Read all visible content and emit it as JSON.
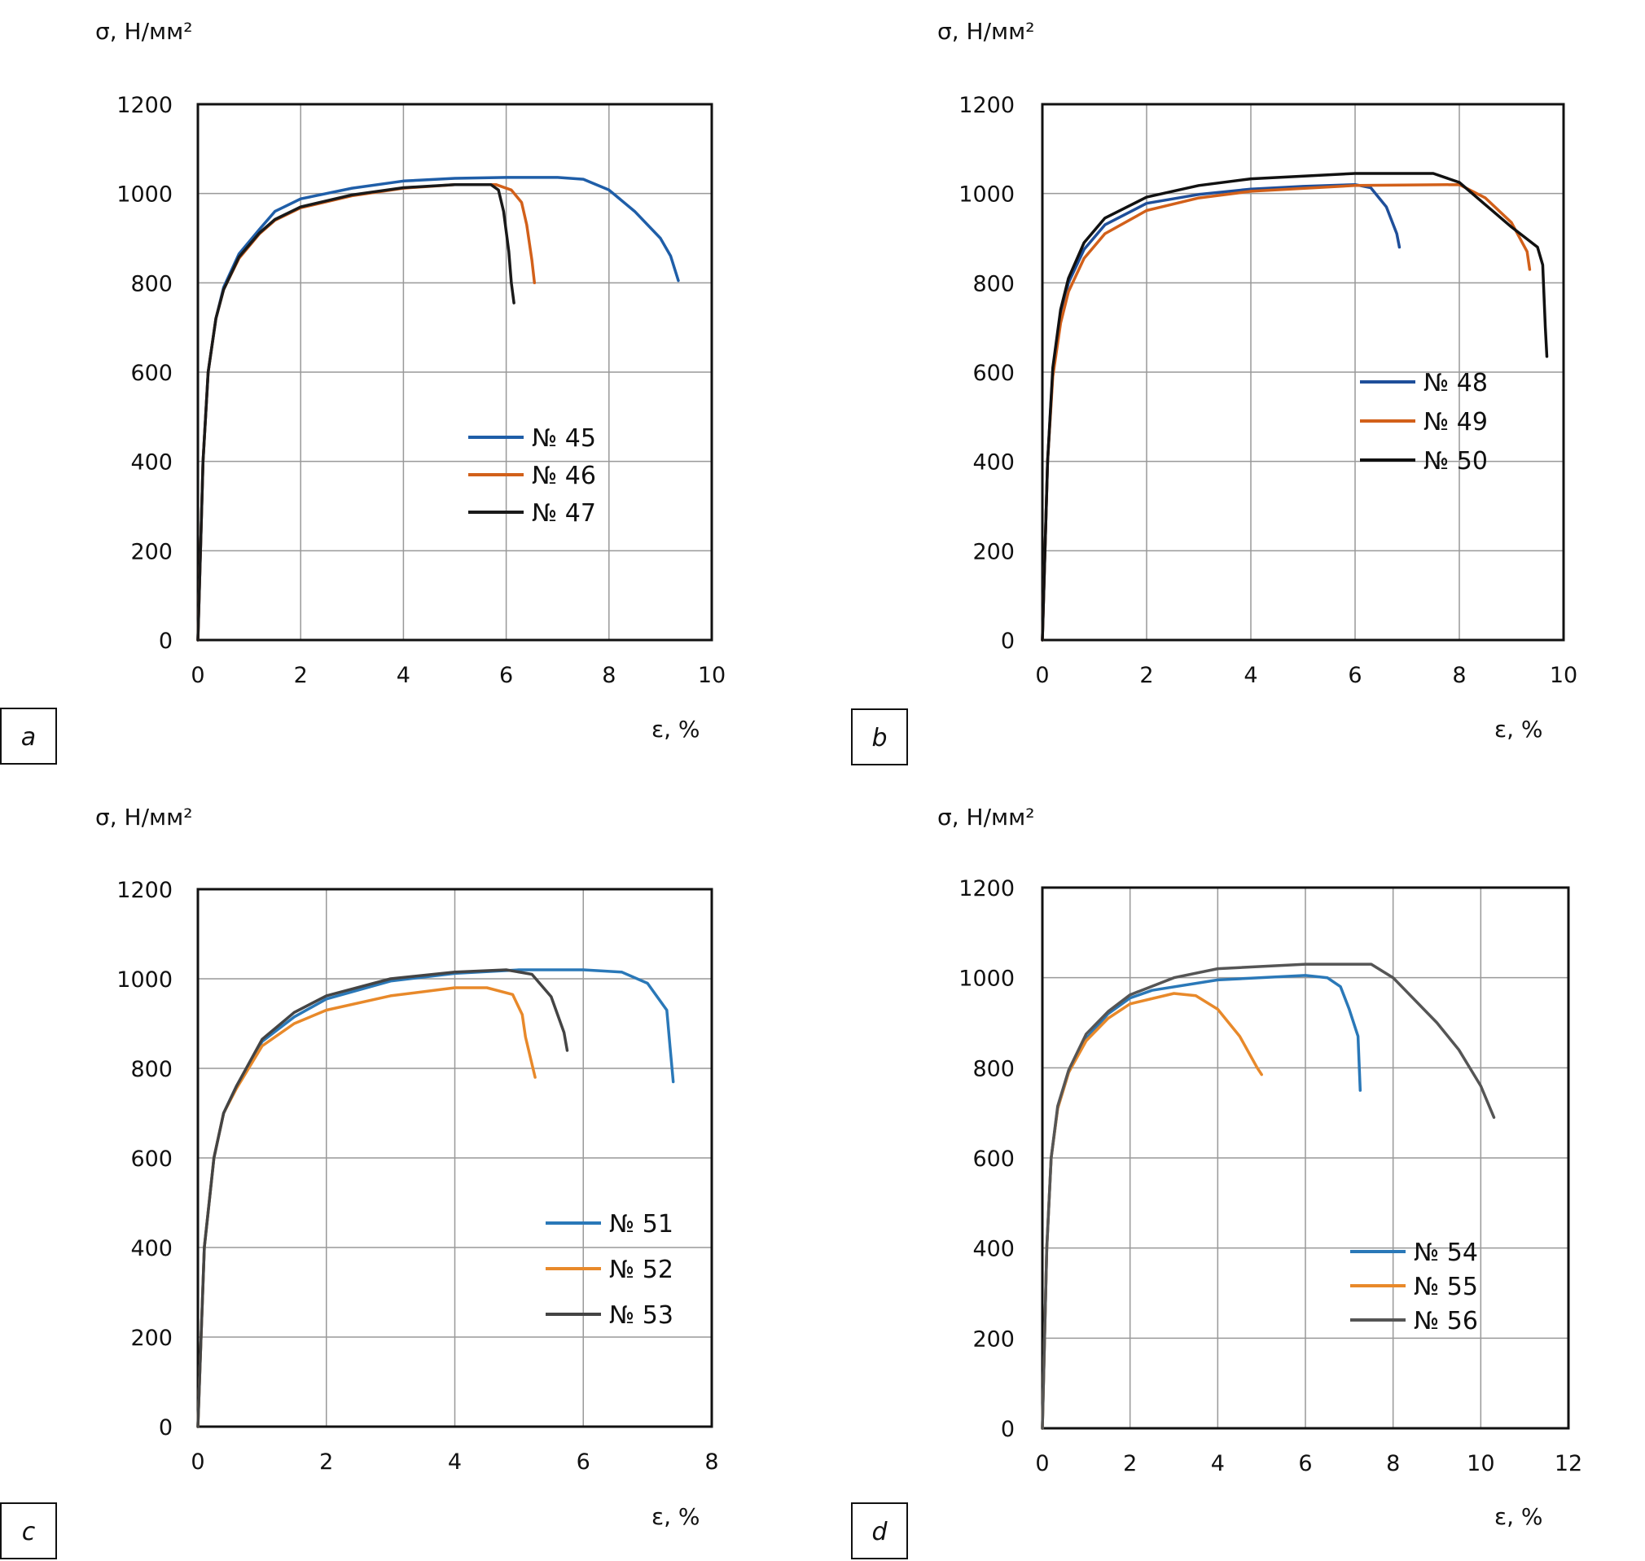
{
  "chart_data": [
    {
      "type": "line",
      "panel_label": "a",
      "ylabel": "σ, Н/мм²",
      "xlabel": "ε, %",
      "xlim": [
        0,
        10
      ],
      "ylim": [
        0,
        1200
      ],
      "xticks": [
        "0",
        "2",
        "4",
        "6",
        "8",
        "10"
      ],
      "yticks": [
        "0",
        "200",
        "400",
        "600",
        "800",
        "1000",
        "1200"
      ],
      "grid": true,
      "legend_placement": "center-right",
      "series": [
        {
          "name": "№ 45",
          "color": "#1f5ea8",
          "points": [
            [
              0,
              0
            ],
            [
              0.05,
              200
            ],
            [
              0.1,
              400
            ],
            [
              0.2,
              600
            ],
            [
              0.35,
              720
            ],
            [
              0.5,
              790
            ],
            [
              0.8,
              865
            ],
            [
              1.2,
              920
            ],
            [
              1.5,
              960
            ],
            [
              2,
              988
            ],
            [
              3,
              1012
            ],
            [
              4,
              1028
            ],
            [
              5,
              1034
            ],
            [
              6,
              1036
            ],
            [
              7,
              1036
            ],
            [
              7.5,
              1032
            ],
            [
              8,
              1008
            ],
            [
              8.5,
              960
            ],
            [
              9,
              900
            ],
            [
              9.2,
              860
            ],
            [
              9.35,
              805
            ]
          ]
        },
        {
          "name": "№ 46",
          "color": "#d2601a",
          "points": [
            [
              0,
              0
            ],
            [
              0.05,
              200
            ],
            [
              0.1,
              400
            ],
            [
              0.2,
              600
            ],
            [
              0.35,
              720
            ],
            [
              0.5,
              785
            ],
            [
              0.8,
              855
            ],
            [
              1.2,
              910
            ],
            [
              1.5,
              940
            ],
            [
              2,
              968
            ],
            [
              3,
              995
            ],
            [
              4,
              1012
            ],
            [
              5,
              1020
            ],
            [
              5.8,
              1020
            ],
            [
              6.1,
              1008
            ],
            [
              6.3,
              980
            ],
            [
              6.4,
              930
            ],
            [
              6.5,
              850
            ],
            [
              6.55,
              800
            ]
          ]
        },
        {
          "name": "№ 47",
          "color": "#1a1a1a",
          "points": [
            [
              0,
              0
            ],
            [
              0.05,
              200
            ],
            [
              0.1,
              400
            ],
            [
              0.2,
              600
            ],
            [
              0.35,
              720
            ],
            [
              0.5,
              785
            ],
            [
              0.8,
              858
            ],
            [
              1.2,
              912
            ],
            [
              1.5,
              942
            ],
            [
              2,
              970
            ],
            [
              3,
              997
            ],
            [
              4,
              1013
            ],
            [
              5,
              1020
            ],
            [
              5.7,
              1020
            ],
            [
              5.85,
              1008
            ],
            [
              5.95,
              960
            ],
            [
              6.05,
              870
            ],
            [
              6.1,
              800
            ],
            [
              6.15,
              755
            ]
          ]
        }
      ]
    },
    {
      "type": "line",
      "panel_label": "b",
      "ylabel": "σ, Н/мм²",
      "xlabel": "ε, %",
      "xlim": [
        0,
        10
      ],
      "ylim": [
        0,
        1200
      ],
      "xticks": [
        "0",
        "2",
        "4",
        "6",
        "8",
        "10"
      ],
      "yticks": [
        "0",
        "200",
        "400",
        "600",
        "800",
        "1000",
        "1200"
      ],
      "grid": true,
      "legend_placement": "center-right",
      "series": [
        {
          "name": "№ 48",
          "color": "#1f4f9a",
          "points": [
            [
              0,
              0
            ],
            [
              0.05,
              200
            ],
            [
              0.1,
              400
            ],
            [
              0.2,
              600
            ],
            [
              0.35,
              730
            ],
            [
              0.5,
              800
            ],
            [
              0.8,
              875
            ],
            [
              1.2,
              930
            ],
            [
              2,
              978
            ],
            [
              3,
              998
            ],
            [
              4,
              1010
            ],
            [
              5,
              1016
            ],
            [
              6,
              1020
            ],
            [
              6.3,
              1013
            ],
            [
              6.6,
              970
            ],
            [
              6.8,
              910
            ],
            [
              6.85,
              880
            ]
          ]
        },
        {
          "name": "№ 49",
          "color": "#d2601a",
          "points": [
            [
              0,
              0
            ],
            [
              0.05,
              200
            ],
            [
              0.1,
              400
            ],
            [
              0.2,
              590
            ],
            [
              0.35,
              710
            ],
            [
              0.5,
              780
            ],
            [
              0.8,
              855
            ],
            [
              1.2,
              910
            ],
            [
              2,
              962
            ],
            [
              3,
              990
            ],
            [
              4,
              1005
            ],
            [
              6,
              1018
            ],
            [
              8,
              1020
            ],
            [
              8.5,
              990
            ],
            [
              9,
              935
            ],
            [
              9.3,
              870
            ],
            [
              9.35,
              830
            ]
          ]
        },
        {
          "name": "№ 50",
          "color": "#111111",
          "points": [
            [
              0,
              0
            ],
            [
              0.05,
              200
            ],
            [
              0.1,
              400
            ],
            [
              0.2,
              610
            ],
            [
              0.35,
              740
            ],
            [
              0.5,
              810
            ],
            [
              0.8,
              890
            ],
            [
              1.2,
              945
            ],
            [
              2,
              992
            ],
            [
              3,
              1018
            ],
            [
              4,
              1033
            ],
            [
              6,
              1045
            ],
            [
              7.5,
              1045
            ],
            [
              8,
              1025
            ],
            [
              8.5,
              975
            ],
            [
              9,
              925
            ],
            [
              9.5,
              880
            ],
            [
              9.6,
              840
            ],
            [
              9.65,
              700
            ],
            [
              9.68,
              635
            ]
          ]
        }
      ]
    },
    {
      "type": "line",
      "panel_label": "c",
      "ylabel": "σ, Н/мм²",
      "xlabel": "ε, %",
      "xlim": [
        0,
        8
      ],
      "ylim": [
        0,
        1200
      ],
      "xticks": [
        "0",
        "2",
        "4",
        "6",
        "8"
      ],
      "yticks": [
        "0",
        "200",
        "400",
        "600",
        "800",
        "1000",
        "1200"
      ],
      "grid": true,
      "legend_placement": "center-right",
      "series": [
        {
          "name": "№ 51",
          "color": "#2a78b8",
          "points": [
            [
              0,
              0
            ],
            [
              0.05,
              200
            ],
            [
              0.1,
              400
            ],
            [
              0.25,
              600
            ],
            [
              0.4,
              700
            ],
            [
              0.6,
              760
            ],
            [
              1,
              860
            ],
            [
              1.5,
              915
            ],
            [
              2,
              955
            ],
            [
              3,
              995
            ],
            [
              4,
              1012
            ],
            [
              5,
              1020
            ],
            [
              6,
              1020
            ],
            [
              6.6,
              1015
            ],
            [
              7,
              990
            ],
            [
              7.3,
              930
            ],
            [
              7.35,
              850
            ],
            [
              7.4,
              770
            ]
          ]
        },
        {
          "name": "№ 52",
          "color": "#e8892a",
          "points": [
            [
              0,
              0
            ],
            [
              0.05,
              200
            ],
            [
              0.1,
              400
            ],
            [
              0.25,
              600
            ],
            [
              0.4,
              700
            ],
            [
              0.6,
              755
            ],
            [
              1,
              850
            ],
            [
              1.5,
              900
            ],
            [
              2,
              930
            ],
            [
              3,
              962
            ],
            [
              4,
              980
            ],
            [
              4.5,
              980
            ],
            [
              4.9,
              965
            ],
            [
              5.05,
              920
            ],
            [
              5.1,
              870
            ],
            [
              5.25,
              780
            ]
          ]
        },
        {
          "name": "№ 53",
          "color": "#444444",
          "points": [
            [
              0,
              0
            ],
            [
              0.05,
              200
            ],
            [
              0.1,
              400
            ],
            [
              0.25,
              600
            ],
            [
              0.4,
              700
            ],
            [
              0.6,
              760
            ],
            [
              1,
              865
            ],
            [
              1.5,
              925
            ],
            [
              2,
              962
            ],
            [
              3,
              1000
            ],
            [
              4,
              1015
            ],
            [
              4.8,
              1020
            ],
            [
              5.2,
              1010
            ],
            [
              5.5,
              960
            ],
            [
              5.7,
              880
            ],
            [
              5.75,
              840
            ]
          ]
        }
      ]
    },
    {
      "type": "line",
      "panel_label": "d",
      "ylabel": "σ, Н/мм²",
      "xlabel": "ε, %",
      "xlim": [
        0,
        12
      ],
      "ylim": [
        0,
        1200
      ],
      "xticks": [
        "0",
        "2",
        "4",
        "6",
        "8",
        "10",
        "12"
      ],
      "yticks": [
        "0",
        "200",
        "400",
        "600",
        "800",
        "1000",
        "1200"
      ],
      "grid": true,
      "legend_placement": "center-right",
      "series": [
        {
          "name": "№ 54",
          "color": "#2a78b8",
          "points": [
            [
              0,
              0
            ],
            [
              0.05,
              200
            ],
            [
              0.1,
              400
            ],
            [
              0.2,
              600
            ],
            [
              0.35,
              710
            ],
            [
              0.6,
              790
            ],
            [
              1,
              865
            ],
            [
              1.5,
              920
            ],
            [
              2,
              955
            ],
            [
              2.5,
              972
            ],
            [
              4,
              995
            ],
            [
              6,
              1005
            ],
            [
              6.5,
              1000
            ],
            [
              6.8,
              980
            ],
            [
              7,
              930
            ],
            [
              7.2,
              870
            ],
            [
              7.25,
              750
            ]
          ]
        },
        {
          "name": "№ 55",
          "color": "#e8892a",
          "points": [
            [
              0,
              0
            ],
            [
              0.05,
              200
            ],
            [
              0.1,
              400
            ],
            [
              0.2,
              600
            ],
            [
              0.35,
              710
            ],
            [
              0.6,
              790
            ],
            [
              1,
              860
            ],
            [
              1.5,
              910
            ],
            [
              2,
              942
            ],
            [
              3,
              965
            ],
            [
              3.5,
              960
            ],
            [
              4,
              930
            ],
            [
              4.5,
              870
            ],
            [
              4.9,
              800
            ],
            [
              5,
              785
            ]
          ]
        },
        {
          "name": "№ 56",
          "color": "#555555",
          "points": [
            [
              0,
              0
            ],
            [
              0.05,
              200
            ],
            [
              0.1,
              400
            ],
            [
              0.2,
              600
            ],
            [
              0.35,
              715
            ],
            [
              0.6,
              795
            ],
            [
              1,
              875
            ],
            [
              1.5,
              925
            ],
            [
              2,
              962
            ],
            [
              3,
              1000
            ],
            [
              4,
              1020
            ],
            [
              6,
              1030
            ],
            [
              7.5,
              1030
            ],
            [
              8,
              1000
            ],
            [
              9,
              900
            ],
            [
              9.5,
              840
            ],
            [
              10,
              760
            ],
            [
              10.3,
              690
            ]
          ]
        }
      ]
    }
  ]
}
